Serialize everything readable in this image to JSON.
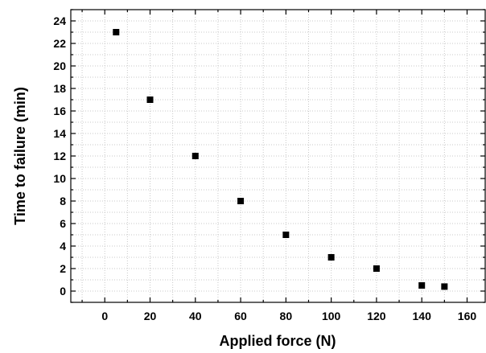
{
  "chart_data": {
    "type": "scatter",
    "xlabel": "Applied force (N)",
    "ylabel": "Time to failure (min)",
    "xlim": [
      -15,
      168
    ],
    "ylim": [
      -1,
      25
    ],
    "x_ticks": [
      0,
      20,
      40,
      60,
      80,
      100,
      120,
      140,
      160
    ],
    "y_ticks": [
      0,
      2,
      4,
      6,
      8,
      10,
      12,
      14,
      16,
      18,
      20,
      22,
      24
    ],
    "grid": true,
    "marker_color": "#000000",
    "series": [
      {
        "x": [
          5,
          20,
          40,
          60,
          80,
          100,
          120,
          140,
          150
        ],
        "y": [
          23,
          17,
          12,
          8,
          5,
          3,
          2,
          0.5,
          0.4
        ]
      }
    ]
  }
}
